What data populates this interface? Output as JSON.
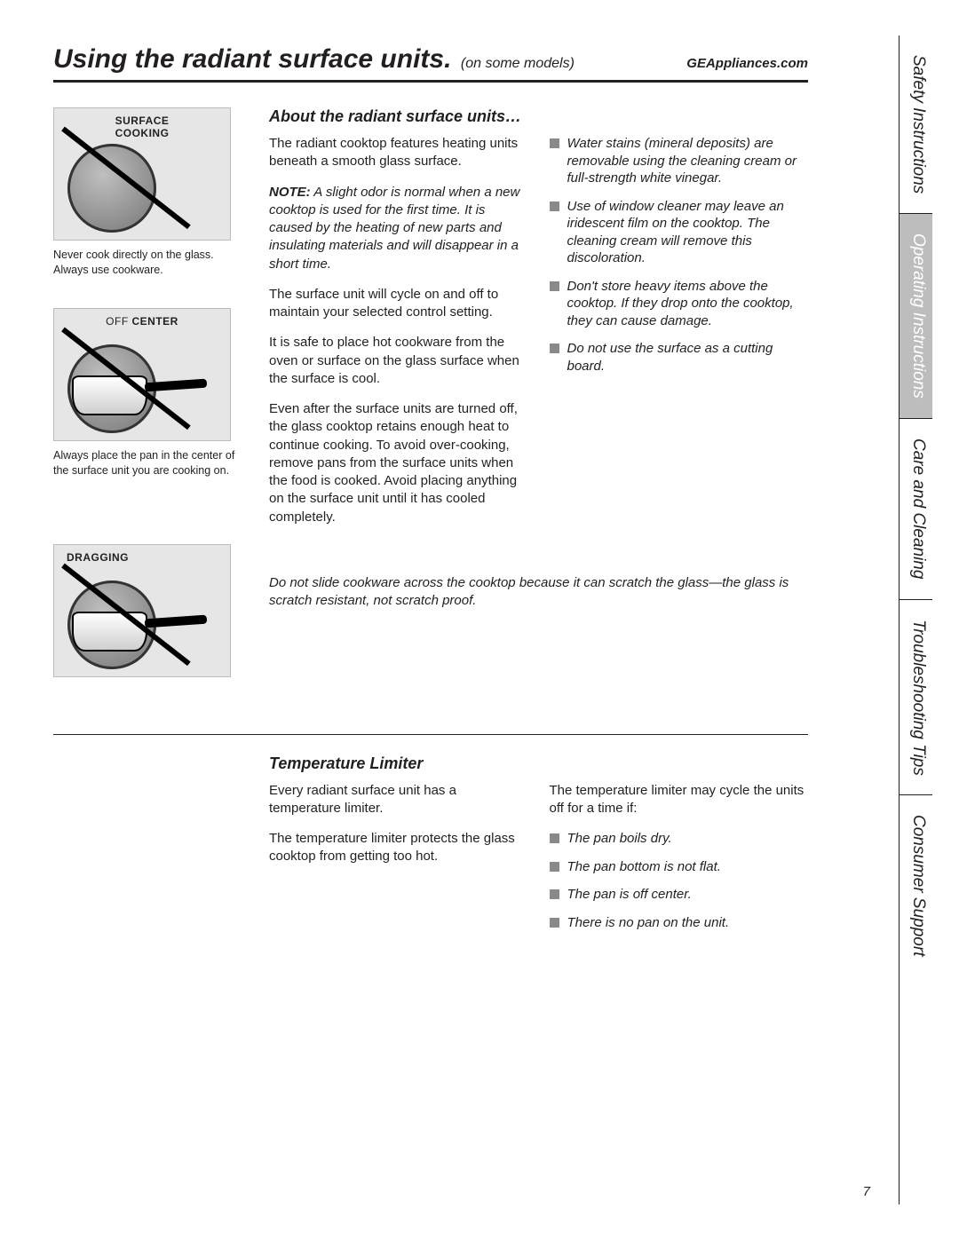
{
  "header": {
    "title": "Using the radiant surface units.",
    "subtitle": "(on some models)",
    "site": "GEAppliances.com"
  },
  "illus": {
    "surface": {
      "label": "SURFACE\nCOOKING",
      "caption": "Never cook directly on the glass. Always use cookware."
    },
    "offcenter": {
      "label_thin": "OFF ",
      "label_bold": "CENTER",
      "caption": "Always place the pan in the center of the surface unit you are cooking on."
    },
    "dragging": {
      "label": "DRAGGING"
    }
  },
  "section1": {
    "title": "About the radiant surface units…",
    "p1": "The radiant cooktop features heating units beneath a smooth glass surface.",
    "note_lead": "NOTE:",
    "note": " A slight odor is normal when a new cooktop is used for the first time. It is caused by the heating of new parts and insulating materials and will disappear in a short time.",
    "p2": "The surface unit will cycle on and off to maintain your selected control setting.",
    "p3": "It is safe to place hot cookware from the oven or surface on the glass surface when the surface is cool.",
    "p4": "Even after the surface units are turned off, the glass cooktop retains enough heat to continue cooking. To avoid over-cooking, remove pans from the surface units when the food is cooked. Avoid placing anything on the surface unit until it has cooled completely.",
    "bullets": [
      "Water stains (mineral deposits) are removable using the cleaning cream or full-strength white vinegar.",
      "Use of window cleaner may leave an iridescent film on the cooktop. The cleaning cream will remove this discoloration.",
      "Don't store heavy items above the cooktop. If they drop onto the cooktop, they can cause damage.",
      "Do not use the surface as a cutting board."
    ],
    "dragging_note": "Do not slide cookware across the cooktop because it can scratch the glass—the glass is scratch resistant, not scratch proof."
  },
  "section2": {
    "title": "Temperature Limiter",
    "p1": "Every radiant surface unit has a temperature limiter.",
    "p2": "The temperature limiter protects the glass cooktop from getting too hot.",
    "p3": "The temperature limiter may cycle the units off for a time if:",
    "bullets": [
      "The pan boils dry.",
      "The pan bottom is not flat.",
      "The pan is off center.",
      "There is no pan on the unit."
    ]
  },
  "tabs": [
    {
      "label": "Safety Instructions",
      "shade": false
    },
    {
      "label": "Operating Instructions",
      "shade": true
    },
    {
      "label": "Care and Cleaning",
      "shade": false
    },
    {
      "label": "Troubleshooting Tips",
      "shade": false
    },
    {
      "label": "Consumer Support",
      "shade": false
    }
  ],
  "page_number": "7"
}
